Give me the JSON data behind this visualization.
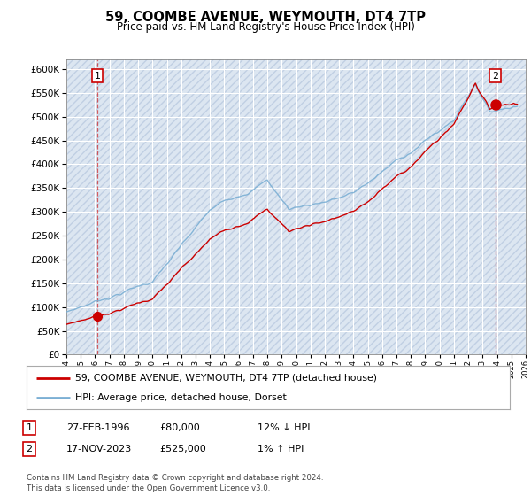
{
  "title": "59, COOMBE AVENUE, WEYMOUTH, DT4 7TP",
  "subtitle": "Price paid vs. HM Land Registry's House Price Index (HPI)",
  "ylim": [
    0,
    620000
  ],
  "yticks": [
    0,
    50000,
    100000,
    150000,
    200000,
    250000,
    300000,
    350000,
    400000,
    450000,
    500000,
    550000,
    600000
  ],
  "ytick_labels": [
    "£0",
    "£50K",
    "£100K",
    "£150K",
    "£200K",
    "£250K",
    "£300K",
    "£350K",
    "£400K",
    "£450K",
    "£500K",
    "£550K",
    "£600K"
  ],
  "sale1_price": 80000,
  "sale1_label": "1",
  "sale1_x": 1996.16,
  "sale2_price": 525000,
  "sale2_label": "2",
  "sale2_x": 2023.88,
  "hpi_color": "#7bafd4",
  "sale_color": "#cc0000",
  "legend_line1": "59, COOMBE AVENUE, WEYMOUTH, DT4 7TP (detached house)",
  "legend_line2": "HPI: Average price, detached house, Dorset",
  "table_row1": [
    "1",
    "27-FEB-1996",
    "£80,000",
    "12% ↓ HPI"
  ],
  "table_row2": [
    "2",
    "17-NOV-2023",
    "£525,000",
    "1% ↑ HPI"
  ],
  "footnote": "Contains HM Land Registry data © Crown copyright and database right 2024.\nThis data is licensed under the Open Government Licence v3.0.",
  "plot_bg_color": "#dce6f1",
  "grid_color": "#ffffff",
  "hatch_color": "#c0cfe3"
}
